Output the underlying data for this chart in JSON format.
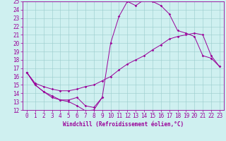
{
  "xlabel": "Windchill (Refroidissement éolien,°C)",
  "background_color": "#cff0f0",
  "line_color": "#990099",
  "xlim_min": -0.5,
  "xlim_max": 23.5,
  "ylim_min": 12,
  "ylim_max": 25,
  "yticks": [
    12,
    13,
    14,
    15,
    16,
    17,
    18,
    19,
    20,
    21,
    22,
    23,
    24,
    25
  ],
  "xticks": [
    0,
    1,
    2,
    3,
    4,
    5,
    6,
    7,
    8,
    9,
    10,
    11,
    12,
    13,
    14,
    15,
    16,
    17,
    18,
    19,
    20,
    21,
    22,
    23
  ],
  "hours": [
    0,
    1,
    2,
    3,
    4,
    5,
    6,
    7,
    8,
    9,
    10,
    11,
    12,
    13,
    14,
    15,
    16,
    17,
    18,
    19,
    20,
    21,
    22,
    23
  ],
  "line1_x": [
    0,
    1,
    2,
    3,
    4,
    5,
    6,
    7,
    8,
    9
  ],
  "line1_y": [
    16.5,
    15.0,
    14.2,
    13.7,
    13.2,
    13.0,
    12.5,
    11.9,
    12.0,
    13.5
  ],
  "line2_y": [
    16.5,
    15.2,
    14.8,
    14.5,
    14.3,
    14.3,
    14.5,
    14.8,
    15.0,
    15.5,
    16.0,
    16.8,
    17.5,
    18.0,
    18.5,
    19.2,
    19.8,
    20.5,
    20.8,
    21.0,
    21.2,
    21.0,
    18.5,
    17.2
  ],
  "line3_y": [
    16.5,
    15.0,
    14.2,
    13.5,
    13.2,
    13.2,
    13.5,
    12.5,
    12.3,
    13.5,
    20.0,
    23.2,
    25.0,
    24.5,
    25.2,
    25.0,
    24.5,
    23.5,
    21.5,
    21.2,
    20.8,
    18.5,
    18.2,
    17.2
  ],
  "markersize": 1.8,
  "linewidth": 0.7,
  "tick_fontsize": 5.5,
  "xlabel_fontsize": 5.5,
  "grid_color": "#99cccc",
  "grid_linewidth": 0.4
}
